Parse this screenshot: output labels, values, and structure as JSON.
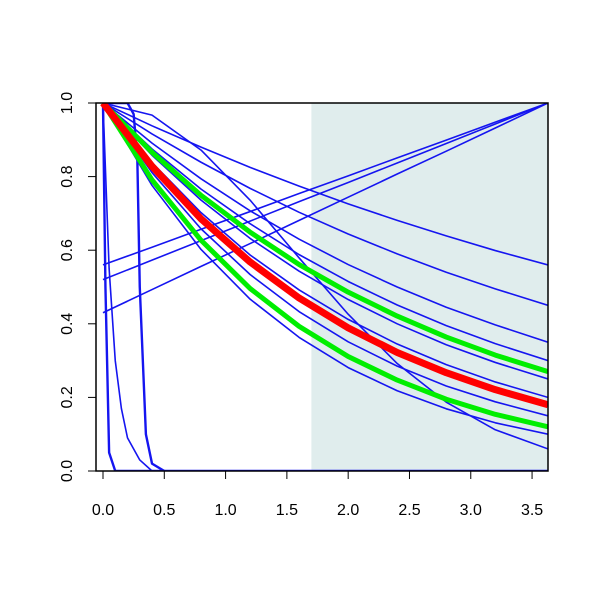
{
  "chart_data": {
    "type": "line",
    "xlim": [
      -0.057,
      3.63
    ],
    "ylim": [
      0,
      1
    ],
    "xticks": [
      {
        "value": 0,
        "label": "0.0"
      },
      0.5,
      {
        "value": 1,
        "label": "1.0"
      },
      1.5,
      {
        "value": 2,
        "label": "2.0"
      },
      2.5,
      {
        "value": 3,
        "label": "3.0"
      },
      3.5
    ],
    "yticks": [
      {
        "value": 0,
        "label": "0.0"
      },
      0.2,
      0.4,
      0.6,
      0.8,
      {
        "value": 1,
        "label": "1.0"
      }
    ],
    "shaded_region": {
      "x": [
        1.7,
        3.63
      ],
      "color": "#e0eded"
    },
    "series": [
      {
        "color": "#1515f0",
        "line_width": 1.6,
        "x": [
          0,
          0.4,
          0.8,
          1.2,
          1.6,
          2.0,
          2.4,
          2.8,
          3.2,
          3.63
        ],
        "values": [
          1,
          0.938,
          0.88,
          0.825,
          0.774,
          0.726,
          0.681,
          0.639,
          0.599,
          0.56
        ]
      },
      {
        "color": "#1515f0",
        "line_width": 1.6,
        "x": [
          0,
          0.4,
          0.8,
          1.2,
          1.6,
          2.0,
          2.4,
          2.8,
          3.2,
          3.63
        ],
        "values": [
          1,
          0.916,
          0.839,
          0.768,
          0.703,
          0.644,
          0.59,
          0.54,
          0.495,
          0.45
        ]
      },
      {
        "color": "#1515f0",
        "line_width": 1.6,
        "x": [
          0,
          0.4,
          0.8,
          1.2,
          1.6,
          2.0,
          2.4,
          2.8,
          3.2,
          3.63
        ],
        "values": [
          1,
          0.891,
          0.794,
          0.707,
          0.63,
          0.561,
          0.5,
          0.445,
          0.397,
          0.35
        ]
      },
      {
        "color": "#1515f0",
        "line_width": 1.6,
        "x": [
          0,
          0.4,
          0.8,
          1.2,
          1.6,
          2.0,
          2.4,
          2.8,
          3.2,
          3.63
        ],
        "values": [
          1,
          0.875,
          0.766,
          0.672,
          0.588,
          0.515,
          0.451,
          0.395,
          0.346,
          0.3
        ]
      },
      {
        "color": "#1515f0",
        "line_width": 1.6,
        "x": [
          0,
          0.4,
          0.8,
          1.2,
          1.6,
          2.0,
          2.4,
          2.8,
          3.2,
          3.63
        ],
        "values": [
          1,
          0.858,
          0.736,
          0.632,
          0.543,
          0.466,
          0.4,
          0.343,
          0.295,
          0.25
        ]
      },
      {
        "color": "#1515f0",
        "line_width": 1.6,
        "x": [
          0,
          0.4,
          0.8,
          1.2,
          1.6,
          2.0,
          2.4,
          2.8,
          3.2,
          3.63
        ],
        "values": [
          1,
          0.838,
          0.702,
          0.587,
          0.492,
          0.412,
          0.345,
          0.289,
          0.242,
          0.2
        ]
      },
      {
        "color": "#1515f0",
        "line_width": 1.6,
        "x": [
          0,
          0.4,
          0.8,
          1.2,
          1.6,
          2.0,
          2.4,
          2.8,
          3.2,
          3.63
        ],
        "values": [
          1,
          0.811,
          0.658,
          0.534,
          0.433,
          0.351,
          0.285,
          0.231,
          0.188,
          0.15
        ]
      },
      {
        "color": "#1515f0",
        "line_width": 1.6,
        "x": [
          0,
          0.4,
          0.8,
          1.2,
          1.6,
          2.0,
          2.4,
          2.8,
          3.2,
          3.63
        ],
        "values": [
          1,
          0.776,
          0.602,
          0.467,
          0.363,
          0.281,
          0.218,
          0.169,
          0.131,
          0.1
        ]
      },
      {
        "color": "#1515f0",
        "line_width": 1.6,
        "x": [
          0,
          0.4,
          0.8,
          1.2,
          1.6,
          2.0,
          2.4,
          2.8,
          3.2,
          3.63
        ],
        "values": [
          1,
          0.967,
          0.872,
          0.736,
          0.579,
          0.426,
          0.292,
          0.187,
          0.112,
          0.06
        ]
      },
      {
        "color": "#1515f0",
        "line_width": 1.6,
        "x": [
          0,
          0.4,
          0.8,
          1.2,
          1.6,
          2.0,
          2.4,
          2.8,
          3.2,
          3.63
        ],
        "values": [
          0.56,
          0.608,
          0.657,
          0.705,
          0.754,
          0.802,
          0.851,
          0.899,
          0.948,
          1
        ]
      },
      {
        "color": "#1515f0",
        "line_width": 1.6,
        "x": [
          0,
          0.4,
          0.8,
          1.2,
          1.6,
          2.0,
          2.4,
          2.8,
          3.2,
          3.63
        ],
        "values": [
          0.52,
          0.573,
          0.626,
          0.679,
          0.732,
          0.784,
          0.837,
          0.89,
          0.943,
          1
        ]
      },
      {
        "color": "#1515f0",
        "line_width": 1.6,
        "x": [
          0,
          0.4,
          0.8,
          1.2,
          1.6,
          2.0,
          2.4,
          2.8,
          3.2,
          3.63
        ],
        "values": [
          0.43,
          0.493,
          0.556,
          0.618,
          0.681,
          0.744,
          0.807,
          0.869,
          0.932,
          1
        ]
      },
      {
        "color": "#1515f0",
        "line_width": 2.4,
        "x": [
          0,
          0.02,
          0.05,
          0.1,
          3.63
        ],
        "values": [
          1,
          0.5,
          0.05,
          0,
          0
        ]
      },
      {
        "color": "#1515f0",
        "line_width": 1.6,
        "x": [
          0,
          0.05,
          0.1,
          0.15,
          0.2,
          0.3,
          0.4
        ],
        "values": [
          1,
          0.55,
          0.3,
          0.17,
          0.09,
          0.03,
          0
        ]
      },
      {
        "color": "#1515f0",
        "line_width": 2.4,
        "x": [
          0,
          0.2,
          0.25,
          0.28,
          0.3,
          0.35,
          0.4,
          0.5
        ],
        "values": [
          1,
          1,
          0.97,
          0.85,
          0.5,
          0.1,
          0.02,
          0
        ]
      },
      {
        "color": "#00ee00",
        "line_width": 5,
        "x": [
          0,
          0.4,
          0.8,
          1.2,
          1.6,
          2.0,
          2.4,
          2.8,
          3.2,
          3.63
        ],
        "values": [
          1,
          0.866,
          0.749,
          0.649,
          0.561,
          0.486,
          0.421,
          0.364,
          0.315,
          0.27
        ]
      },
      {
        "color": "#00ee00",
        "line_width": 5,
        "x": [
          0,
          0.4,
          0.8,
          1.2,
          1.6,
          2.0,
          2.4,
          2.8,
          3.2,
          3.63
        ],
        "values": [
          1,
          0.791,
          0.627,
          0.496,
          0.393,
          0.311,
          0.247,
          0.195,
          0.154,
          0.12
        ]
      },
      {
        "color": "#ff0000",
        "line_width": 7,
        "x": [
          0,
          0.4,
          0.8,
          1.2,
          1.6,
          2.0,
          2.4,
          2.8,
          3.2,
          3.63
        ],
        "values": [
          1,
          0.828,
          0.685,
          0.568,
          0.47,
          0.389,
          0.322,
          0.267,
          0.221,
          0.18
        ]
      }
    ]
  }
}
